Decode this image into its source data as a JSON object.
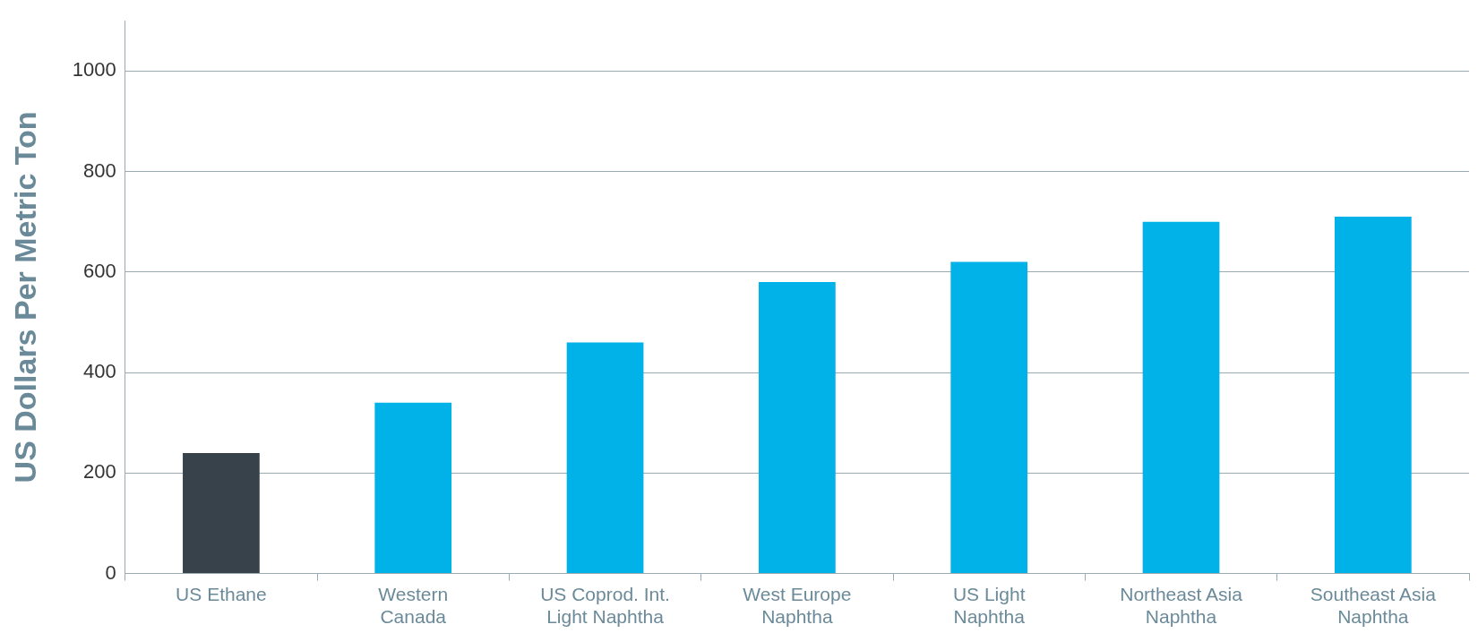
{
  "chart_data": {
    "type": "bar",
    "ylabel": "US Dollars Per Metric Ton",
    "categories": [
      "US Ethane",
      "Western\nCanada",
      "US Coprod. Int.\nLight Naphtha",
      "West Europe\nNaphtha",
      "US Light\nNaphtha",
      "Northeast Asia\nNaphtha",
      "Southeast Asia\nNaphtha"
    ],
    "values": [
      240,
      340,
      460,
      580,
      620,
      700,
      710
    ],
    "colors": [
      "#37424a",
      "#00b2e8",
      "#00b2e8",
      "#00b2e8",
      "#00b2e8",
      "#00b2e8",
      "#00b2e8"
    ],
    "ylim": [
      0,
      1100
    ],
    "yticks": [
      0,
      200,
      400,
      600,
      800,
      1000
    ],
    "grid": "y",
    "legend": false
  }
}
